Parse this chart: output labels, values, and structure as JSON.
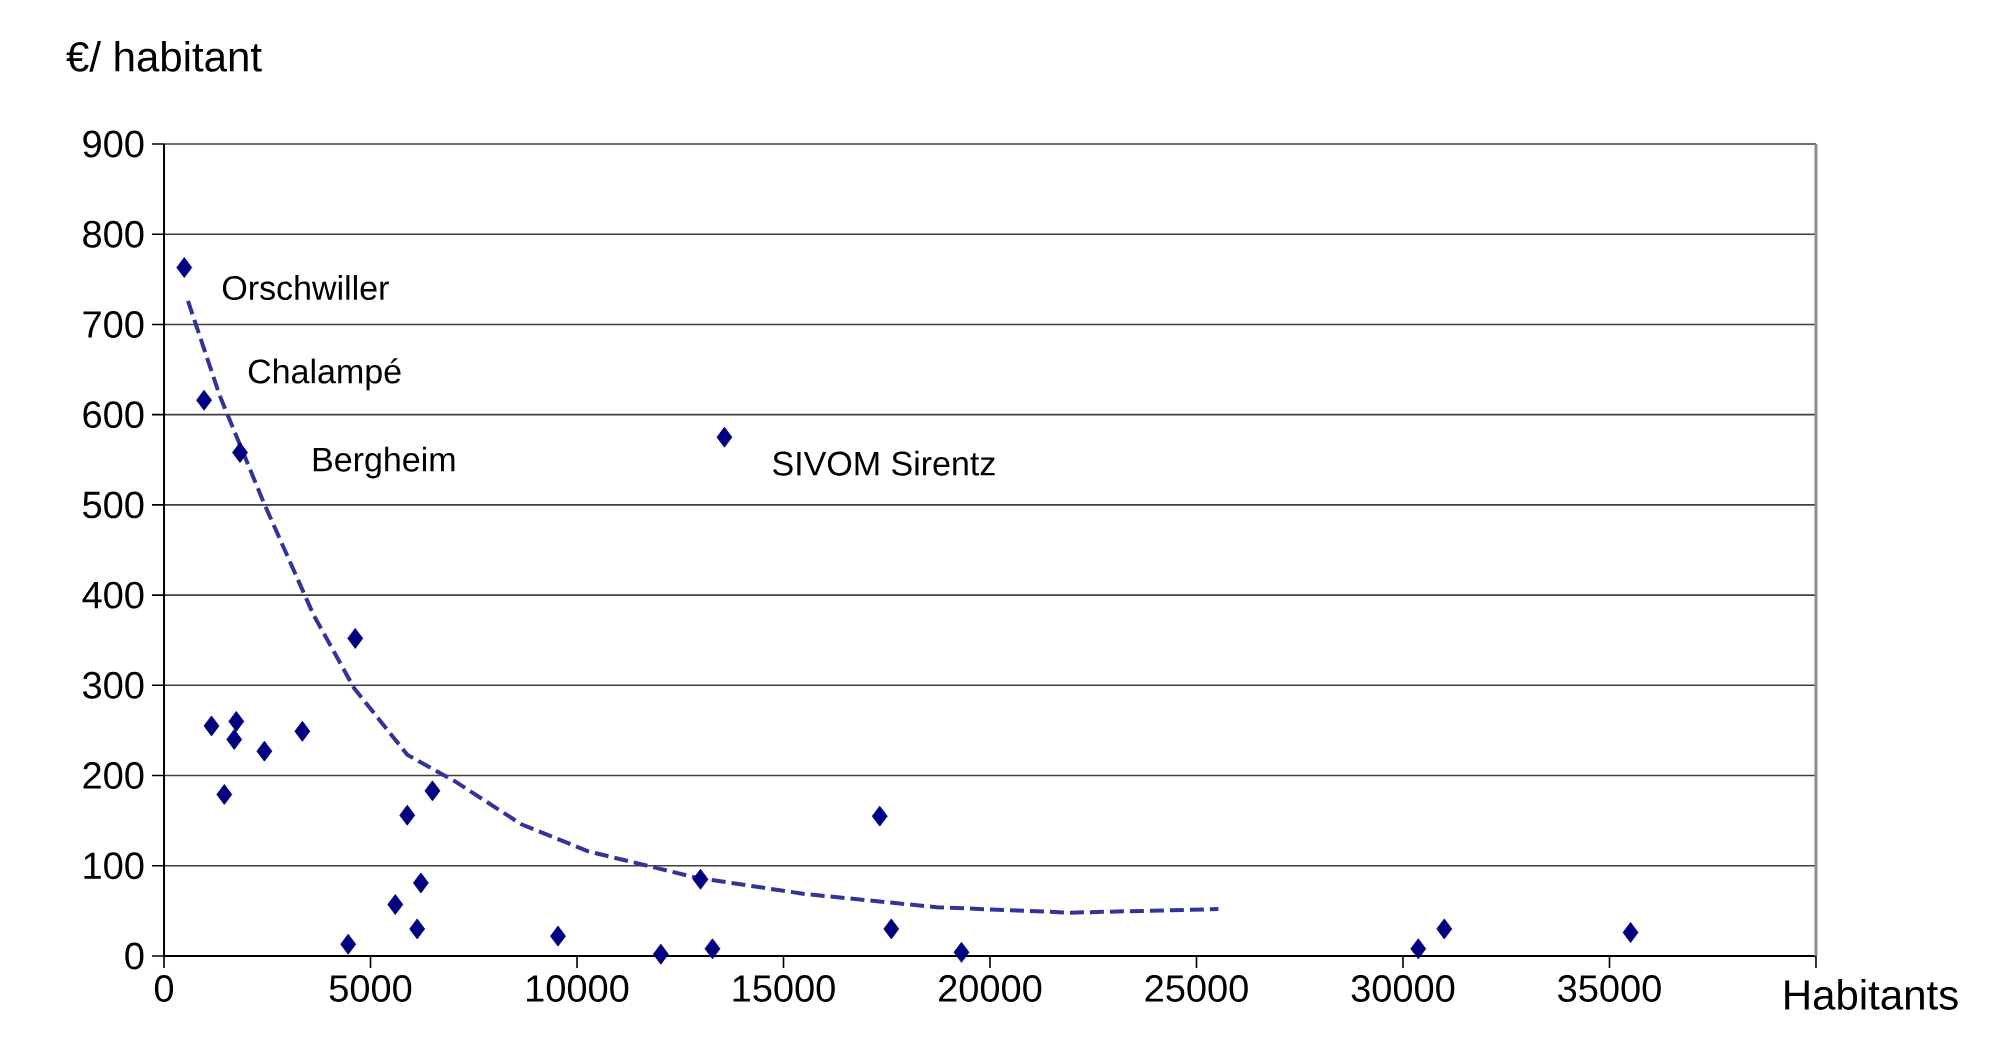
{
  "chart_data": {
    "type": "scatter",
    "xlabel": "Habitants",
    "ylabel": "€/ habitant",
    "xlim": [
      0,
      40000
    ],
    "xticks": [
      0,
      5000,
      10000,
      15000,
      20000,
      25000,
      30000,
      35000,
      {
        "value": 40000,
        "label": null
      }
    ],
    "ylim": [
      0,
      900
    ],
    "yticks": [
      0,
      100,
      200,
      300,
      400,
      500,
      600,
      700,
      800,
      900
    ],
    "grid": "y",
    "marker": "diamond",
    "series": [
      {
        "color": "#000080",
        "x": [
          490,
          970,
          1840,
          1150,
          1750,
          1700,
          1460,
          2430,
          3350,
          4630,
          4460,
          5890,
          6500,
          5600,
          6220,
          6130,
          9540,
          12030,
          12990,
          13280,
          13570,
          17330,
          17610,
          19310,
          30370,
          31000,
          35510
        ],
        "values": [
          763,
          616,
          558,
          255,
          260,
          240,
          179,
          227,
          249,
          352,
          13,
          156,
          183,
          57,
          81,
          30,
          22,
          2,
          85,
          8,
          575,
          155,
          30,
          4,
          8,
          30,
          26
        ]
      },
      {
        "type": "line",
        "line_style": "dashed",
        "marker": "none",
        "color": "#333399",
        "x": [
          580,
          1350,
          2410,
          3620,
          4600,
          5890,
          7030,
          8650,
          10270,
          12870,
          15470,
          18710,
          21960,
          25530
        ],
        "values": [
          726,
          621,
          503,
          378,
          297,
          223,
          194,
          146,
          116,
          87,
          69,
          54,
          48,
          52
        ]
      }
    ],
    "annotations": [
      {
        "text": "Orschwiller",
        "x": 490,
        "y": 763
      },
      {
        "text": "Chalampé",
        "x": 970,
        "y": 616
      },
      {
        "text": "Bergheim",
        "x": 1840,
        "y": 558
      },
      {
        "text": "SIVOM Sirentz",
        "x": 13570,
        "y": 575
      }
    ]
  }
}
